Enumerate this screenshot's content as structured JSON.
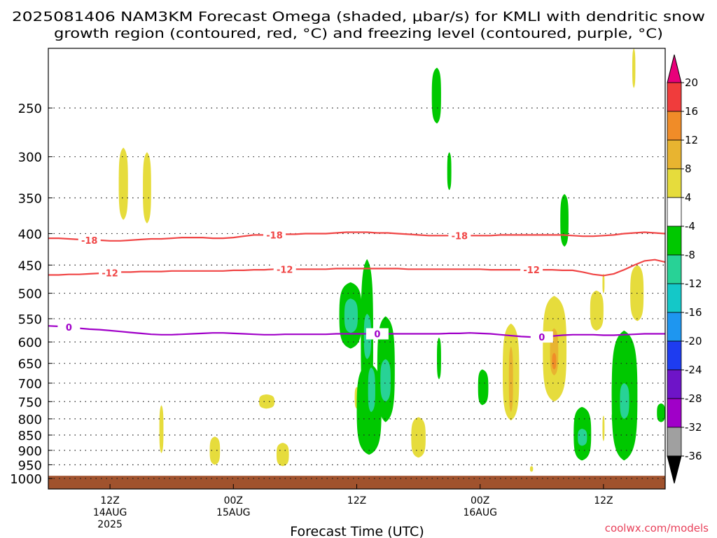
{
  "chart_data": {
    "type": "heatmap",
    "title_lines": [
      "2025081406 NAM3KM Forecast Omega (shaded, μbar/s) for KMLI with dendritic snow",
      "growth region (contoured, red, °C) and freezing level (contoured, purple, °C)"
    ],
    "xlabel": "Forecast Time (UTC)",
    "ylabel": "",
    "watermark": "coolwx.com/models",
    "y_axis": {
      "scale": "log-pressure",
      "range_hPa": [
        1040,
        200
      ],
      "ticks": [
        "250",
        "300",
        "350",
        "400",
        "450",
        "500",
        "550",
        "600",
        "650",
        "700",
        "750",
        "800",
        "850",
        "900",
        "950",
        "1000"
      ]
    },
    "x_axis": {
      "range_fhr": [
        0,
        60
      ],
      "ticks": [
        {
          "fhr": 6,
          "labels": [
            "12Z",
            "14AUG",
            "2025"
          ]
        },
        {
          "fhr": 18,
          "labels": [
            "00Z",
            "15AUG"
          ]
        },
        {
          "fhr": 30,
          "labels": [
            "12Z"
          ]
        },
        {
          "fhr": 42,
          "labels": [
            "00Z",
            "16AUG"
          ]
        },
        {
          "fhr": 54,
          "labels": [
            "12Z"
          ]
        }
      ]
    },
    "colorbar": {
      "levels": [
        "20",
        "16",
        "12",
        "8",
        "4",
        "-4",
        "-8",
        "-12",
        "-16",
        "-20",
        "-24",
        "-28",
        "-32",
        "-36"
      ],
      "colors": [
        "#e8007a",
        "#f03c3c",
        "#f08c28",
        "#e8b430",
        "#e6dc3c",
        "#ffffff",
        "#00c800",
        "#28d296",
        "#14c8c8",
        "#1e96f0",
        "#1e3cf0",
        "#6e14c8",
        "#a000c8",
        "#a0a0a0",
        "#000000"
      ]
    },
    "contours": [
      {
        "label": "-18",
        "color": "#f04646",
        "values_hPa": [
          407,
          407,
          408,
          409,
          410,
          410,
          411,
          411,
          410,
          409,
          408,
          408,
          407,
          406,
          406,
          406,
          407,
          407,
          406,
          404,
          402,
          402,
          402,
          401,
          401,
          400,
          400,
          400,
          399,
          398,
          398,
          398,
          399,
          399,
          400,
          401,
          402,
          403,
          403,
          403,
          403,
          403,
          403,
          403,
          402,
          402,
          402,
          402,
          402,
          402,
          402,
          403,
          404,
          404,
          403,
          402,
          400,
          399,
          398,
          399,
          400
        ]
      },
      {
        "label": "-12",
        "color": "#f04646",
        "values_hPa": [
          467,
          467,
          466,
          466,
          465,
          464,
          463,
          462,
          462,
          461,
          461,
          461,
          460,
          460,
          460,
          460,
          460,
          460,
          459,
          459,
          458,
          458,
          457,
          457,
          457,
          457,
          457,
          457,
          456,
          456,
          456,
          456,
          456,
          456,
          456,
          457,
          457,
          457,
          457,
          457,
          457,
          457,
          457,
          458,
          458,
          458,
          458,
          458,
          458,
          458,
          459,
          459,
          462,
          466,
          468,
          465,
          458,
          450,
          443,
          441,
          445
        ]
      },
      {
        "label": "0",
        "color": "#a000c8",
        "values_hPa": [
          565,
          566,
          568,
          570,
          572,
          573,
          575,
          577,
          579,
          581,
          583,
          584,
          584,
          583,
          582,
          581,
          580,
          580,
          581,
          582,
          583,
          584,
          584,
          583,
          583,
          583,
          583,
          583,
          582,
          582,
          582,
          582,
          582,
          582,
          582,
          582,
          582,
          582,
          582,
          581,
          581,
          580,
          581,
          582,
          584,
          586,
          588,
          589,
          589,
          587,
          585,
          584,
          584,
          584,
          585,
          585,
          584,
          583,
          582,
          582,
          582
        ]
      }
    ],
    "omega_regions": [
      {
        "color": "#e6dc3c",
        "x_fhr": [
          6.85,
          7.3,
          7.75
        ],
        "top_hPa": 290,
        "bottom_hPa": 380
      },
      {
        "color": "#e6dc3c",
        "x_fhr": [
          9.2,
          9.6,
          10.0
        ],
        "top_hPa": 295,
        "bottom_hPa": 385
      },
      {
        "color": "#e6dc3c",
        "x_fhr": [
          10.8,
          11.0,
          11.2
        ],
        "top_hPa": 760,
        "bottom_hPa": 910
      },
      {
        "color": "#e6dc3c",
        "x_fhr": [
          15.7,
          16.2,
          16.7
        ],
        "top_hPa": 855,
        "bottom_hPa": 950
      },
      {
        "color": "#e6dc3c",
        "x_fhr": [
          20.5,
          21.2,
          22.0
        ],
        "top_hPa": 730,
        "bottom_hPa": 770
      },
      {
        "color": "#e6dc3c",
        "x_fhr": [
          22.2,
          22.8,
          23.4
        ],
        "top_hPa": 875,
        "bottom_hPa": 955
      },
      {
        "color": "#e6dc3c",
        "x_fhr": [
          29.8,
          30.0,
          30.2
        ],
        "top_hPa": 710,
        "bottom_hPa": 770
      },
      {
        "color": "#e6dc3c",
        "x_fhr": [
          35.3,
          36.0,
          36.7
        ],
        "top_hPa": 795,
        "bottom_hPa": 925
      },
      {
        "color": "#e6dc3c",
        "x_fhr": [
          44.2,
          45.0,
          45.8
        ],
        "top_hPa": 560,
        "bottom_hPa": 805
      },
      {
        "color": "#e8b430",
        "x_fhr": [
          44.8,
          45.0,
          45.2
        ],
        "top_hPa": 610,
        "bottom_hPa": 780
      },
      {
        "color": "#e6dc3c",
        "x_fhr": [
          48.1,
          49.2,
          50.4
        ],
        "top_hPa": 505,
        "bottom_hPa": 750
      },
      {
        "color": "#e8b430",
        "x_fhr": [
          48.8,
          49.2,
          49.6
        ],
        "top_hPa": 570,
        "bottom_hPa": 680
      },
      {
        "color": "#f08c28",
        "x_fhr": [
          49.0,
          49.2,
          49.4
        ],
        "top_hPa": 625,
        "bottom_hPa": 665
      },
      {
        "color": "#e6dc3c",
        "x_fhr": [
          52.7,
          53.3,
          54.0
        ],
        "top_hPa": 495,
        "bottom_hPa": 575
      },
      {
        "color": "#e6dc3c",
        "x_fhr": [
          53.9,
          54.0,
          54.1
        ],
        "top_hPa": 465,
        "bottom_hPa": 500
      },
      {
        "color": "#e6dc3c",
        "x_fhr": [
          53.9,
          54.0,
          54.1
        ],
        "top_hPa": 790,
        "bottom_hPa": 870
      },
      {
        "color": "#e6dc3c",
        "x_fhr": [
          56.6,
          57.3,
          57.9
        ],
        "top_hPa": 450,
        "bottom_hPa": 555
      },
      {
        "color": "#e6dc3c",
        "x_fhr": [
          56.8,
          56.95,
          57.1
        ],
        "top_hPa": 200,
        "bottom_hPa": 232
      },
      {
        "color": "#e6dc3c",
        "x_fhr": [
          46.85,
          47.0,
          47.15
        ],
        "top_hPa": 955,
        "bottom_hPa": 975
      },
      {
        "color": "#00c800",
        "x_fhr": [
          37.3,
          37.8,
          38.2
        ],
        "top_hPa": 215,
        "bottom_hPa": 265
      },
      {
        "color": "#00c800",
        "x_fhr": [
          38.8,
          39.0,
          39.2
        ],
        "top_hPa": 295,
        "bottom_hPa": 340
      },
      {
        "color": "#00c800",
        "x_fhr": [
          37.8,
          38.0,
          38.2
        ],
        "top_hPa": 590,
        "bottom_hPa": 690
      },
      {
        "color": "#00c800",
        "x_fhr": [
          41.8,
          42.2,
          42.8
        ],
        "top_hPa": 665,
        "bottom_hPa": 760
      },
      {
        "color": "#00c800",
        "x_fhr": [
          49.8,
          50.2,
          50.6
        ],
        "top_hPa": 345,
        "bottom_hPa": 420
      },
      {
        "color": "#00c800",
        "x_fhr": [
          51.1,
          51.9,
          52.8
        ],
        "top_hPa": 765,
        "bottom_hPa": 935
      },
      {
        "color": "#28d296",
        "x_fhr": [
          51.5,
          51.9,
          52.4
        ],
        "top_hPa": 830,
        "bottom_hPa": 885
      },
      {
        "color": "#00c800",
        "x_fhr": [
          54.8,
          55.0,
          55.2
        ],
        "top_hPa": 690,
        "bottom_hPa": 760
      },
      {
        "color": "#00c800",
        "x_fhr": [
          54.8,
          55.0,
          55.2
        ],
        "top_hPa": 780,
        "bottom_hPa": 810
      },
      {
        "color": "#00c800",
        "x_fhr": [
          54.8,
          56.0,
          57.3
        ],
        "top_hPa": 575,
        "bottom_hPa": 935
      },
      {
        "color": "#28d296",
        "x_fhr": [
          55.6,
          56.0,
          56.5
        ],
        "top_hPa": 700,
        "bottom_hPa": 800
      },
      {
        "color": "#00c800",
        "x_fhr": [
          59.2,
          59.6,
          60.0
        ],
        "top_hPa": 755,
        "bottom_hPa": 810
      },
      {
        "color": "#00c800",
        "x_fhr": [
          28.3,
          29.4,
          30.5
        ],
        "top_hPa": 480,
        "bottom_hPa": 615
      },
      {
        "color": "#00c800",
        "x_fhr": [
          30.4,
          31.0,
          31.6
        ],
        "top_hPa": 440,
        "bottom_hPa": 800
      },
      {
        "color": "#00c800",
        "x_fhr": [
          32.0,
          32.8,
          33.7
        ],
        "top_hPa": 545,
        "bottom_hPa": 810
      },
      {
        "color": "#00c800",
        "x_fhr": [
          30.0,
          31.2,
          32.4
        ],
        "top_hPa": 650,
        "bottom_hPa": 915
      },
      {
        "color": "#28d296",
        "x_fhr": [
          28.8,
          29.4,
          30.1
        ],
        "top_hPa": 510,
        "bottom_hPa": 580
      },
      {
        "color": "#28d296",
        "x_fhr": [
          30.7,
          31.0,
          31.4
        ],
        "top_hPa": 540,
        "bottom_hPa": 640
      },
      {
        "color": "#28d296",
        "x_fhr": [
          31.1,
          31.4,
          31.8
        ],
        "top_hPa": 660,
        "bottom_hPa": 780
      },
      {
        "color": "#28d296",
        "x_fhr": [
          32.3,
          32.8,
          33.3
        ],
        "top_hPa": 640,
        "bottom_hPa": 750
      }
    ],
    "terrain": {
      "color": "#a0522d",
      "top_hPa": 990
    }
  }
}
